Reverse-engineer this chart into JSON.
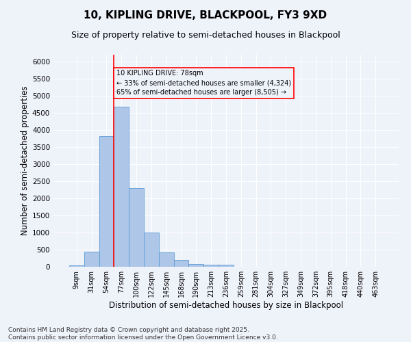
{
  "title1": "10, KIPLING DRIVE, BLACKPOOL, FY3 9XD",
  "title2": "Size of property relative to semi-detached houses in Blackpool",
  "xlabel": "Distribution of semi-detached houses by size in Blackpool",
  "ylabel": "Number of semi-detached properties",
  "categories": [
    "9sqm",
    "31sqm",
    "54sqm",
    "77sqm",
    "100sqm",
    "122sqm",
    "145sqm",
    "168sqm",
    "190sqm",
    "213sqm",
    "236sqm",
    "259sqm",
    "281sqm",
    "304sqm",
    "327sqm",
    "349sqm",
    "372sqm",
    "395sqm",
    "418sqm",
    "440sqm",
    "463sqm"
  ],
  "values": [
    50,
    440,
    3820,
    4680,
    2310,
    1000,
    415,
    210,
    90,
    70,
    55,
    0,
    0,
    0,
    0,
    0,
    0,
    0,
    0,
    0,
    0
  ],
  "bar_color": "#aec6e8",
  "bar_edge_color": "#5b9bd5",
  "marker_bin_index": 3,
  "marker_label": "10 KIPLING DRIVE: 78sqm",
  "annotation_line1": "← 33% of semi-detached houses are smaller (4,324)",
  "annotation_line2": "65% of semi-detached houses are larger (8,505) →",
  "ylim": [
    0,
    6200
  ],
  "yticks": [
    0,
    500,
    1000,
    1500,
    2000,
    2500,
    3000,
    3500,
    4000,
    4500,
    5000,
    5500,
    6000
  ],
  "footnote1": "Contains HM Land Registry data © Crown copyright and database right 2025.",
  "footnote2": "Contains public sector information licensed under the Open Government Licence v3.0.",
  "bg_color": "#eef2f9",
  "grid_color": "#ffffff",
  "title1_fontsize": 11,
  "title2_fontsize": 9,
  "axis_label_fontsize": 8.5,
  "tick_fontsize": 7.5,
  "footnote_fontsize": 6.5
}
